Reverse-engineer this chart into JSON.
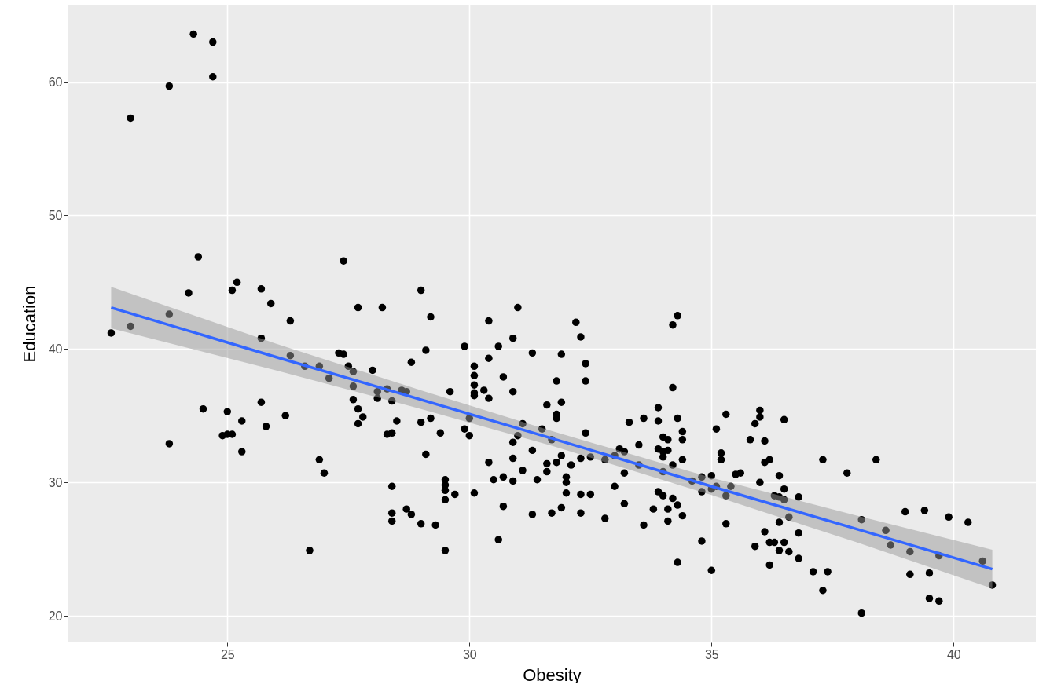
{
  "chart_data": {
    "type": "scatter",
    "xlabel": "Obesity",
    "ylabel": "Education",
    "xlim": [
      21.7,
      41.7
    ],
    "ylim": [
      18,
      65.8
    ],
    "xticks": [
      25,
      30,
      35,
      40
    ],
    "yticks": [
      20,
      30,
      40,
      50,
      60
    ],
    "grid": true,
    "series": [
      {
        "color": "#000000",
        "marker": "circle",
        "x": [
          24.3,
          24.7,
          24.7,
          23.8,
          23.0,
          24.4,
          27.4,
          25.2,
          25.1,
          25.7,
          25.9,
          24.2,
          27.7,
          28.2,
          22.6,
          23.0,
          23.8,
          26.3,
          25.7,
          26.3,
          26.6,
          26.9,
          27.1,
          27.3,
          27.4,
          27.5,
          27.6,
          27.6,
          27.6,
          27.7,
          27.8,
          27.7,
          28.0,
          28.1,
          28.1,
          28.3,
          28.4,
          28.5,
          28.3,
          28.4,
          28.4,
          28.4,
          28.4,
          24.5,
          25.0,
          25.3,
          25.7,
          25.8,
          26.2,
          23.8,
          24.9,
          25.0,
          25.1,
          25.3,
          26.9,
          27.0,
          26.7,
          29.0,
          29.2,
          29.1,
          28.8,
          29.6,
          29.9,
          30.1,
          30.1,
          30.1,
          30.1,
          30.1,
          30.3,
          30.4,
          30.4,
          30.4,
          30.6,
          30.7,
          30.9,
          30.9,
          31.0,
          31.3,
          31.8,
          31.9,
          31.9,
          31.6,
          31.8,
          31.8,
          32.2,
          32.3,
          32.4,
          32.4,
          32.4,
          34.2,
          34.3,
          34.2,
          33.9,
          33.9,
          33.6,
          33.3,
          34.3,
          34.4,
          34.4,
          34.0,
          34.1,
          33.9,
          34.0,
          34.1,
          34.0,
          33.5,
          34.4,
          34.2,
          34.0,
          33.5,
          33.2,
          33.1,
          33.2,
          33.0,
          32.8,
          32.5,
          32.3,
          32.1,
          31.9,
          31.8,
          31.6,
          31.6,
          31.7,
          31.5,
          31.1,
          31.0,
          30.9,
          31.3,
          30.9,
          31.1,
          30.4,
          30.7,
          30.5,
          30.9,
          31.4,
          32.0,
          32.0,
          33.0,
          30.0,
          29.9,
          30.0,
          29.4,
          29.2,
          29.0,
          29.1,
          29.5,
          28.6,
          28.7,
          35.0,
          34.8,
          34.6,
          35.1,
          29.5,
          29.5,
          29.5,
          29.7,
          30.1,
          32.0,
          32.3,
          32.5,
          34.8,
          35.0,
          33.2,
          28.7,
          28.8,
          29.0,
          29.3,
          29.5,
          30.7,
          30.6,
          31.3,
          31.7,
          31.9,
          32.3,
          32.8,
          33.6,
          33.8,
          33.9,
          34.0,
          34.2,
          34.3,
          34.1,
          34.1,
          34.4,
          34.8,
          34.3,
          35.0,
          36.0,
          36.0,
          35.9,
          35.3,
          36.5,
          35.8,
          36.1,
          35.2,
          35.2,
          36.1,
          36.2,
          35.5,
          35.6,
          36.4,
          36.0,
          36.5,
          35.1,
          35.4,
          35.3,
          36.3,
          36.4,
          36.5,
          36.8,
          36.6,
          37.3,
          37.8,
          38.4,
          38.1,
          38.6,
          38.7,
          39.0,
          39.4,
          39.9,
          40.3,
          35.3,
          36.4,
          36.1,
          36.8,
          35.9,
          36.2,
          36.3,
          36.5,
          36.4,
          36.6,
          36.8,
          36.2,
          37.1,
          37.4,
          37.3,
          38.1,
          39.1,
          39.1,
          39.5,
          39.5,
          39.7,
          39.7,
          40.6,
          40.8
        ],
        "values": [
          63.6,
          63.0,
          60.4,
          59.7,
          57.3,
          46.9,
          46.6,
          45.0,
          44.4,
          44.5,
          43.4,
          44.2,
          43.1,
          43.1,
          41.2,
          41.7,
          42.6,
          42.1,
          40.8,
          39.5,
          38.7,
          38.7,
          37.8,
          39.7,
          39.6,
          38.7,
          38.3,
          37.2,
          36.2,
          35.5,
          34.9,
          34.4,
          38.4,
          36.8,
          36.3,
          37.0,
          36.1,
          34.6,
          33.6,
          33.7,
          29.7,
          27.7,
          27.1,
          35.5,
          35.3,
          34.6,
          36.0,
          34.2,
          35.0,
          32.9,
          33.5,
          33.6,
          33.6,
          32.3,
          31.7,
          30.7,
          24.9,
          44.4,
          42.4,
          39.9,
          39.0,
          36.8,
          40.2,
          38.7,
          38.0,
          37.3,
          36.7,
          36.5,
          36.9,
          36.3,
          42.1,
          39.3,
          40.2,
          37.9,
          40.8,
          36.8,
          43.1,
          39.7,
          37.6,
          39.6,
          36.0,
          35.8,
          35.1,
          34.8,
          42.0,
          40.9,
          38.9,
          37.6,
          33.7,
          41.8,
          42.5,
          37.1,
          35.6,
          34.6,
          34.8,
          34.5,
          34.8,
          33.8,
          33.2,
          33.4,
          33.2,
          32.5,
          32.3,
          32.4,
          31.9,
          32.8,
          31.7,
          31.3,
          30.8,
          31.3,
          30.7,
          32.5,
          32.3,
          32.0,
          31.7,
          31.9,
          31.8,
          31.3,
          32.0,
          31.5,
          31.4,
          30.8,
          33.2,
          34.0,
          34.4,
          33.5,
          33.0,
          32.4,
          31.8,
          30.9,
          31.5,
          30.4,
          30.2,
          30.1,
          30.2,
          30.4,
          30.0,
          29.7,
          34.8,
          34.0,
          33.5,
          33.7,
          34.8,
          34.5,
          32.1,
          30.2,
          36.9,
          36.8,
          30.5,
          30.4,
          30.1,
          34.0,
          29.8,
          29.4,
          28.7,
          29.1,
          29.2,
          29.2,
          29.1,
          29.1,
          29.3,
          29.5,
          28.4,
          28.0,
          27.6,
          26.9,
          26.8,
          24.9,
          28.2,
          25.7,
          27.6,
          27.7,
          28.1,
          27.7,
          27.3,
          26.8,
          28.0,
          29.3,
          29.0,
          28.8,
          28.3,
          28.0,
          27.1,
          27.5,
          25.6,
          24.0,
          23.4,
          35.4,
          34.9,
          34.4,
          35.1,
          34.7,
          33.2,
          33.1,
          32.2,
          31.7,
          31.5,
          31.7,
          30.6,
          30.7,
          30.5,
          30.0,
          29.5,
          29.7,
          29.7,
          29.0,
          29.0,
          28.9,
          28.7,
          28.9,
          27.4,
          31.7,
          30.7,
          31.7,
          27.2,
          26.4,
          25.3,
          27.8,
          27.9,
          27.4,
          27.0,
          26.9,
          27.0,
          26.3,
          26.2,
          25.2,
          25.5,
          25.5,
          25.5,
          24.9,
          24.8,
          24.3,
          23.8,
          23.3,
          23.3,
          21.9,
          20.2,
          24.8,
          23.1,
          23.2,
          21.3,
          21.1,
          24.5,
          24.1,
          22.3
        ]
      },
      {
        "type": "line",
        "color": "#3366ff",
        "x": [
          22.6,
          26,
          29,
          31.7,
          35,
          38,
          40.8
        ],
        "values": [
          43.1,
          39.4,
          36.2,
          33.3,
          29.7,
          26.5,
          23.5
        ],
        "lower": [
          41.55,
          38.4,
          35.5,
          32.75,
          29.05,
          25.5,
          22.05
        ],
        "upper": [
          44.65,
          40.4,
          36.9,
          33.85,
          30.35,
          27.5,
          24.95
        ]
      }
    ]
  }
}
